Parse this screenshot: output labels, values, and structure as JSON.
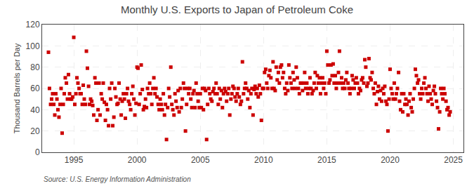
{
  "chart_data": {
    "type": "scatter",
    "title": "Monthly U.S. Exports to Japan of Petroleum Coke",
    "ylabel": "Thousand Barrels per Day",
    "annotations": [
      "Source: U.S. Energy Information Administration"
    ],
    "color": "#cc0000",
    "marker": "square",
    "grid": true,
    "xlim": [
      1992.5,
      2025.8
    ],
    "xticks": [
      1995,
      2000,
      2005,
      2010,
      2015,
      2020,
      2025
    ],
    "ylim": [
      0,
      120
    ],
    "yticks": [
      0,
      20,
      40,
      60,
      80,
      100,
      120
    ],
    "x": [
      1993.0,
      1993.08,
      1993.17,
      1993.25,
      1993.33,
      1993.42,
      1993.5,
      1993.58,
      1993.67,
      1993.75,
      1993.83,
      1993.92,
      1994.0,
      1994.08,
      1994.17,
      1994.25,
      1994.33,
      1994.42,
      1994.5,
      1994.58,
      1994.67,
      1994.75,
      1994.83,
      1994.92,
      1995.0,
      1995.08,
      1995.17,
      1995.25,
      1995.33,
      1995.42,
      1995.5,
      1995.58,
      1995.67,
      1995.75,
      1995.83,
      1995.92,
      1996.0,
      1996.08,
      1996.17,
      1996.25,
      1996.33,
      1996.42,
      1996.5,
      1996.58,
      1996.67,
      1996.75,
      1996.83,
      1996.92,
      1997.0,
      1997.08,
      1997.17,
      1997.25,
      1997.33,
      1997.42,
      1997.5,
      1997.58,
      1997.67,
      1997.75,
      1997.83,
      1997.92,
      1998.0,
      1998.08,
      1998.17,
      1998.25,
      1998.33,
      1998.42,
      1998.5,
      1998.58,
      1998.67,
      1998.75,
      1998.83,
      1998.92,
      1999.0,
      1999.08,
      1999.17,
      1999.25,
      1999.33,
      1999.42,
      1999.5,
      1999.58,
      1999.67,
      1999.75,
      1999.83,
      1999.92,
      2000.0,
      2000.08,
      2000.17,
      2000.25,
      2000.33,
      2000.42,
      2000.5,
      2000.58,
      2000.67,
      2000.75,
      2000.83,
      2000.92,
      2001.0,
      2001.08,
      2001.17,
      2001.25,
      2001.33,
      2001.42,
      2001.5,
      2001.58,
      2001.67,
      2001.75,
      2001.83,
      2001.92,
      2002.0,
      2002.08,
      2002.17,
      2002.25,
      2002.33,
      2002.42,
      2002.5,
      2002.58,
      2002.67,
      2002.75,
      2002.83,
      2002.92,
      2003.0,
      2003.08,
      2003.17,
      2003.25,
      2003.33,
      2003.42,
      2003.5,
      2003.58,
      2003.67,
      2003.75,
      2003.83,
      2003.92,
      2004.0,
      2004.08,
      2004.17,
      2004.25,
      2004.33,
      2004.42,
      2004.5,
      2004.58,
      2004.67,
      2004.75,
      2004.83,
      2004.92,
      2005.0,
      2005.08,
      2005.17,
      2005.25,
      2005.33,
      2005.42,
      2005.5,
      2005.58,
      2005.67,
      2005.75,
      2005.83,
      2005.92,
      2006.0,
      2006.08,
      2006.17,
      2006.25,
      2006.33,
      2006.42,
      2006.5,
      2006.58,
      2006.67,
      2006.75,
      2006.83,
      2006.92,
      2007.0,
      2007.08,
      2007.17,
      2007.25,
      2007.33,
      2007.42,
      2007.5,
      2007.58,
      2007.67,
      2007.75,
      2007.83,
      2007.92,
      2008.0,
      2008.08,
      2008.17,
      2008.25,
      2008.33,
      2008.42,
      2008.5,
      2008.58,
      2008.67,
      2008.75,
      2008.83,
      2008.92,
      2009.0,
      2009.08,
      2009.17,
      2009.25,
      2009.33,
      2009.42,
      2009.5,
      2009.58,
      2009.67,
      2009.75,
      2009.83,
      2009.92,
      2010.0,
      2010.08,
      2010.17,
      2010.25,
      2010.33,
      2010.42,
      2010.5,
      2010.58,
      2010.67,
      2010.75,
      2010.83,
      2010.92,
      2011.0,
      2011.08,
      2011.17,
      2011.25,
      2011.33,
      2011.42,
      2011.5,
      2011.58,
      2011.67,
      2011.75,
      2011.83,
      2011.92,
      2012.0,
      2012.08,
      2012.17,
      2012.25,
      2012.33,
      2012.42,
      2012.5,
      2012.58,
      2012.67,
      2012.75,
      2012.83,
      2012.92,
      2013.0,
      2013.08,
      2013.17,
      2013.25,
      2013.33,
      2013.42,
      2013.5,
      2013.58,
      2013.67,
      2013.75,
      2013.83,
      2013.92,
      2014.0,
      2014.08,
      2014.17,
      2014.25,
      2014.33,
      2014.42,
      2014.5,
      2014.58,
      2014.67,
      2014.75,
      2014.83,
      2014.92,
      2015.0,
      2015.08,
      2015.17,
      2015.25,
      2015.33,
      2015.42,
      2015.5,
      2015.58,
      2015.67,
      2015.75,
      2015.83,
      2015.92,
      2016.0,
      2016.08,
      2016.17,
      2016.25,
      2016.33,
      2016.42,
      2016.5,
      2016.58,
      2016.67,
      2016.75,
      2016.83,
      2016.92,
      2017.0,
      2017.08,
      2017.17,
      2017.25,
      2017.33,
      2017.42,
      2017.5,
      2017.58,
      2017.67,
      2017.75,
      2017.83,
      2017.92,
      2018.0,
      2018.08,
      2018.17,
      2018.25,
      2018.33,
      2018.42,
      2018.5,
      2018.58,
      2018.67,
      2018.75,
      2018.83,
      2018.92,
      2019.0,
      2019.08,
      2019.17,
      2019.25,
      2019.33,
      2019.42,
      2019.5,
      2019.58,
      2019.67,
      2019.75,
      2019.83,
      2019.92,
      2020.0,
      2020.08,
      2020.17,
      2020.25,
      2020.33,
      2020.42,
      2020.5,
      2020.58,
      2020.67,
      2020.75,
      2020.83,
      2020.92,
      2021.0,
      2021.08,
      2021.17,
      2021.25,
      2021.33,
      2021.42,
      2021.5,
      2021.58,
      2021.67,
      2021.75,
      2021.83,
      2021.92,
      2022.0,
      2022.08,
      2022.17,
      2022.25,
      2022.33,
      2022.42,
      2022.5,
      2022.58,
      2022.67,
      2022.75,
      2022.83,
      2022.92,
      2023.0,
      2023.08,
      2023.17,
      2023.25,
      2023.33,
      2023.42,
      2023.5,
      2023.58,
      2023.67,
      2023.75,
      2023.83,
      2023.92,
      2024.0,
      2024.08,
      2024.17,
      2024.25,
      2024.33,
      2024.42,
      2024.5,
      2024.58,
      2024.67,
      2024.75
    ],
    "values": [
      94,
      60,
      45,
      50,
      55,
      45,
      35,
      55,
      50,
      40,
      33,
      45,
      60,
      18,
      45,
      55,
      70,
      65,
      50,
      73,
      55,
      50,
      50,
      52,
      108,
      45,
      55,
      70,
      65,
      60,
      55,
      55,
      45,
      63,
      50,
      45,
      95,
      79,
      62,
      45,
      50,
      48,
      44,
      35,
      70,
      65,
      30,
      40,
      65,
      35,
      55,
      50,
      65,
      47,
      30,
      45,
      40,
      25,
      60,
      50,
      65,
      25,
      33,
      60,
      52,
      45,
      46,
      65,
      50,
      35,
      48,
      55,
      50,
      32,
      55,
      60,
      48,
      45,
      40,
      55,
      62,
      50,
      35,
      46,
      80,
      79,
      45,
      55,
      82,
      59,
      40,
      43,
      50,
      42,
      60,
      55,
      65,
      55,
      45,
      60,
      70,
      55,
      60,
      52,
      45,
      40,
      50,
      45,
      40,
      55,
      35,
      45,
      12,
      42,
      60,
      52,
      80,
      45,
      40,
      35,
      55,
      48,
      42,
      58,
      38,
      60,
      42,
      50,
      65,
      60,
      20,
      45,
      60,
      55,
      60,
      50,
      42,
      55,
      58,
      42,
      65,
      55,
      48,
      42,
      55,
      42,
      60,
      40,
      60,
      58,
      12,
      45,
      60,
      55,
      50,
      48,
      57,
      60,
      55,
      65,
      55,
      45,
      60,
      50,
      58,
      42,
      55,
      60,
      57,
      48,
      55,
      60,
      35,
      50,
      55,
      62,
      60,
      52,
      48,
      55,
      60,
      52,
      45,
      48,
      85,
      55,
      60,
      65,
      60,
      50,
      58,
      42,
      55,
      60,
      35,
      59,
      62,
      55,
      60,
      52,
      63,
      55,
      30,
      60,
      60,
      75,
      78,
      65,
      60,
      72,
      77,
      70,
      60,
      85,
      60,
      58,
      80,
      68,
      75,
      65,
      80,
      82,
      70,
      75,
      60,
      55,
      65,
      58,
      82,
      70,
      65,
      60,
      75,
      68,
      60,
      80,
      70,
      60,
      55,
      65,
      65,
      58,
      65,
      75,
      60,
      65,
      55,
      60,
      70,
      60,
      55,
      58,
      65,
      75,
      60,
      72,
      65,
      70,
      55,
      65,
      70,
      60,
      65,
      55,
      95,
      82,
      65,
      68,
      82,
      72,
      83,
      65,
      72,
      60,
      65,
      75,
      95,
      65,
      70,
      60,
      65,
      60,
      68,
      75,
      65,
      60,
      55,
      60,
      72,
      68,
      60,
      65,
      70,
      65,
      55,
      60,
      58,
      68,
      70,
      65,
      87,
      80,
      62,
      65,
      88,
      70,
      68,
      75,
      60,
      55,
      65,
      45,
      57,
      62,
      50,
      58,
      48,
      60,
      55,
      62,
      48,
      45,
      20,
      50,
      78,
      60,
      55,
      50,
      65,
      50,
      55,
      60,
      75,
      48,
      40,
      55,
      38,
      55,
      45,
      50,
      45,
      35,
      48,
      55,
      42,
      38,
      50,
      60,
      78,
      72,
      65,
      68,
      55,
      50,
      60,
      55,
      65,
      70,
      60,
      55,
      48,
      62,
      55,
      50,
      45,
      58,
      62,
      55,
      48,
      42,
      22,
      38,
      60,
      55,
      50,
      60,
      55,
      48,
      40,
      42,
      35,
      38
    ]
  }
}
